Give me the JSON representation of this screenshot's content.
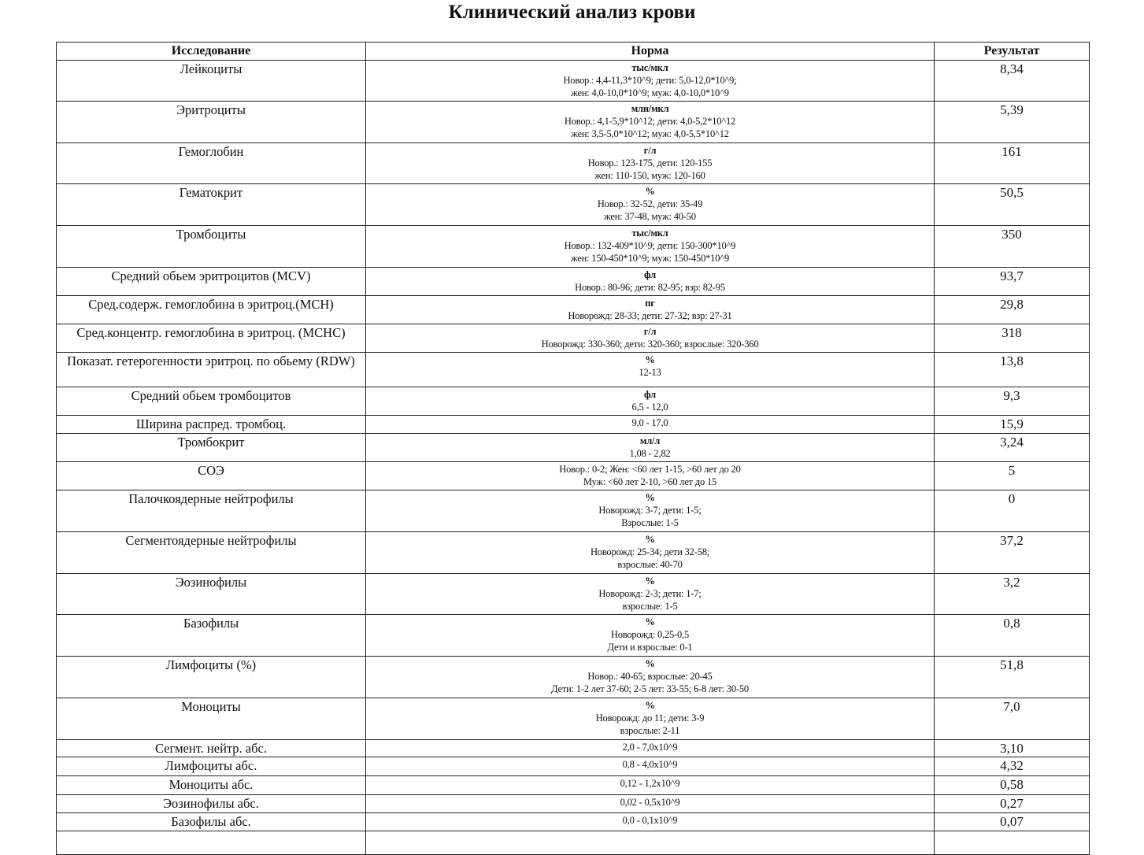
{
  "title": "Клинический анализ крови",
  "headers": {
    "name": "Исследование",
    "norm": "Норма",
    "result": "Результат"
  },
  "rows": [
    {
      "name": "Лейкоциты",
      "unit": "тыс/мкл",
      "norm": [
        "Новор.: 4,4-11,3*10^9; дети: 5,0-12,0*10^9;",
        "жен: 4,0-10,0*10^9; муж: 4,0-10,0*10^9"
      ],
      "result": "8,34"
    },
    {
      "name": "Эритроциты",
      "unit": "млн/мкл",
      "norm": [
        "Новор.: 4,1-5,9*10^12; дети: 4,0-5,2*10^12",
        "жен: 3,5-5,0*10^12; муж: 4,0-5,5*10^12"
      ],
      "result": "5,39"
    },
    {
      "name": "Гемоглобин",
      "unit": "г/л",
      "norm": [
        "Новор.: 123-175, дети: 120-155",
        "жен: 110-150, муж: 120-160"
      ],
      "result": "161"
    },
    {
      "name": "Гематокрит",
      "unit": "%",
      "norm": [
        "Новор.: 32-52, дети: 35-49",
        "жен: 37-48, муж: 40-50"
      ],
      "result": "50,5"
    },
    {
      "name": "Тромбоциты",
      "unit": "тыс/мкл",
      "norm": [
        "Новор.: 132-409*10^9; дети: 150-300*10^9",
        "жен: 150-450*10^9; муж: 150-450*10^9"
      ],
      "result": "350"
    },
    {
      "name": "Средний обьем эритроцитов (MCV)",
      "unit": "фл",
      "norm": [
        "Новор.: 80-96; дети: 82-95; взр: 82-95"
      ],
      "result": "93,7"
    },
    {
      "name": "Сред.содерж. гемоглобина в эритроц.(MCH)",
      "unit": "пг",
      "norm": [
        "Новорожд: 28-33; дети: 27-32; взр: 27-31"
      ],
      "result": "29,8"
    },
    {
      "name": "Сред.концентр. гемоглобина в эритроц. (MCHC)",
      "unit": "г/л",
      "norm": [
        "Новорожд: 330-360; дети: 320-360; взрослые: 320-360"
      ],
      "result": "318"
    },
    {
      "name": "Показат. гетерогенности эритроц. по обьему (RDW)",
      "unit": "%",
      "norm": [
        "12-13"
      ],
      "result": "13,8"
    },
    {
      "name": "Средний обьем тромбоцитов",
      "unit": "фл",
      "norm": [
        "6,5 - 12,0"
      ],
      "result": "9,3"
    },
    {
      "name": "Ширина распред. тромбоц.",
      "unit": "",
      "norm": [
        "9,0 - 17,0"
      ],
      "result": "15,9"
    },
    {
      "name": "Тромбокрит",
      "unit": "мл/л",
      "norm": [
        "1,08 - 2,82"
      ],
      "result": "3,24"
    },
    {
      "name": "СОЭ",
      "unit": "",
      "norm": [
        "Новор.: 0-2; Жен: <60 лет 1-15, >60 лет до 20",
        "Муж: <60 лет 2-10, >60 лет до 15"
      ],
      "result": "5"
    },
    {
      "name": "Палочкоядерные нейтрофилы",
      "unit": "%",
      "norm": [
        "Новорожд: 3-7; дети: 1-5;",
        "Взрослые: 1-5"
      ],
      "result": "0"
    },
    {
      "name": "Сегментоядерные нейтрофилы",
      "unit": "%",
      "norm": [
        "Новорожд: 25-34; дети 32-58;",
        "взрослые: 40-70"
      ],
      "result": "37,2"
    },
    {
      "name": "Эозинофилы",
      "unit": "%",
      "norm": [
        "Новорожд: 2-3; дети: 1-7;",
        "взрослые: 1-5"
      ],
      "result": "3,2"
    },
    {
      "name": "Базофилы",
      "unit": "%",
      "norm": [
        "Новорожд: 0,25-0,5",
        "Дети и взрослые: 0-1"
      ],
      "result": "0,8"
    },
    {
      "name": "Лимфоциты (%)",
      "unit": "%",
      "norm": [
        "Новор.: 40-65; взрослые: 20-45",
        "Дети: 1-2 лет 37-60; 2-5 лет: 33-55; 6-8 лет: 30-50"
      ],
      "result": "51,8"
    },
    {
      "name": "Моноциты",
      "unit": "%",
      "norm": [
        "Новорожд: до 11; дети: 3-9",
        "взрослые: 2-11"
      ],
      "result": "7,0"
    },
    {
      "name": "Сегмент. нейтр. абс.",
      "unit": "",
      "norm": [
        "2,0 - 7,0x10^9"
      ],
      "result": "3,10"
    },
    {
      "name": "Лимфоциты абс.",
      "unit": "",
      "norm": [
        "0,8 - 4,0x10^9"
      ],
      "result": "4,32"
    },
    {
      "name": "Моноциты абс.",
      "unit": "",
      "norm": [
        "0,12 - 1,2x10^9"
      ],
      "result": "0,58"
    },
    {
      "name": "Эозинофилы абс.",
      "unit": "",
      "norm": [
        "0,02 - 0,5x10^9"
      ],
      "result": "0,27"
    },
    {
      "name": "Базофилы абс.",
      "unit": "",
      "norm": [
        "0,0 - 0,1x10^9"
      ],
      "result": "0,07"
    }
  ]
}
